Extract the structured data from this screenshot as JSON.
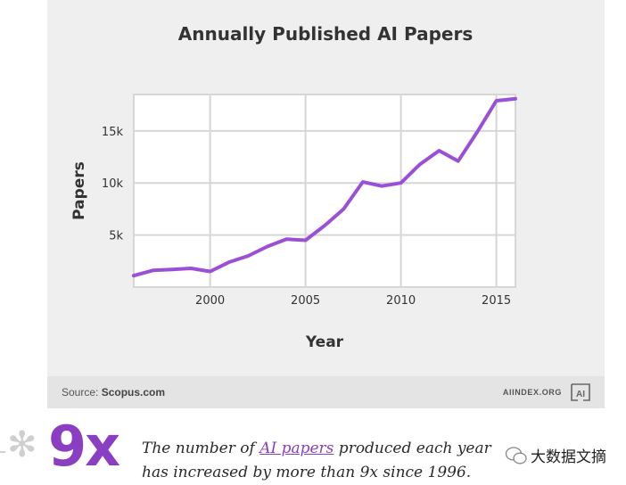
{
  "chart_data": {
    "type": "line",
    "title": "Annually Published AI Papers",
    "xlabel": "Year",
    "ylabel": "Papers",
    "xlim": [
      1996,
      2016
    ],
    "ylim": [
      0,
      18500
    ],
    "xticks": [
      2000,
      2005,
      2010,
      2015
    ],
    "xtick_labels": [
      "2000",
      "2005",
      "2010",
      "2015"
    ],
    "yticks": [
      5000,
      10000,
      15000
    ],
    "ytick_labels": [
      "5k",
      "10k",
      "15k"
    ],
    "grid": true,
    "color": "#9b4fd6",
    "x": [
      1996,
      1997,
      1998,
      1999,
      2000,
      2001,
      2002,
      2003,
      2004,
      2005,
      2006,
      2007,
      2008,
      2009,
      2010,
      2011,
      2012,
      2013,
      2014,
      2015,
      2016
    ],
    "y": [
      1100,
      1600,
      1700,
      1800,
      1500,
      2400,
      3000,
      3900,
      4600,
      4500,
      5900,
      7500,
      10100,
      9700,
      10000,
      11800,
      13100,
      12100,
      14900,
      17900,
      18100
    ]
  },
  "footer": {
    "source_label": "Source:",
    "source_name": "Scopus.com",
    "brand": "AIINDEX.ORG",
    "logo_text": "AI"
  },
  "stat": {
    "big": "9x",
    "caption_prefix": "The number of ",
    "caption_link": "AI papers",
    "caption_suffix": " produced each year has increased by more than 9x since 1996."
  },
  "watermark": {
    "text": "大数据文摘"
  },
  "colors": {
    "accent": "#8a3fc2",
    "line": "#9b4fd6",
    "card_bg": "#efefef",
    "footer_bg": "#e4e4e4"
  }
}
